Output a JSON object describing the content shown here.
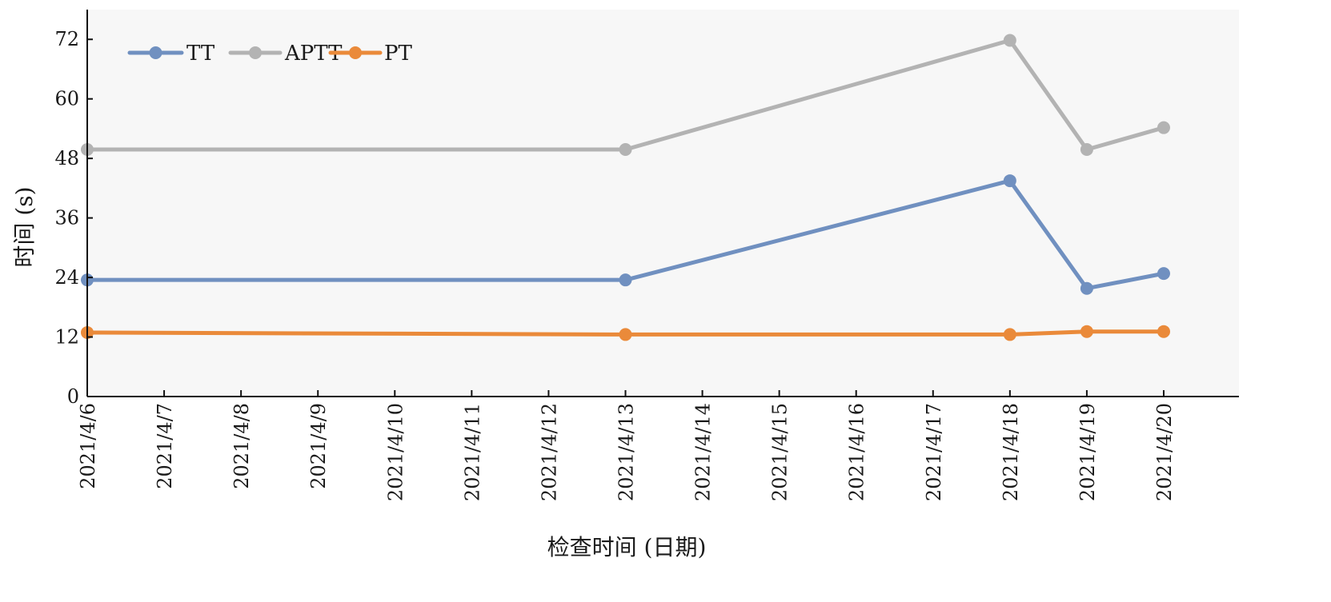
{
  "chart_data": {
    "type": "line",
    "xlabel": "检查时间 (日期)",
    "ylabel": "时间 (s)",
    "ylim": [
      0,
      78
    ],
    "yticks": [
      0,
      12,
      24,
      36,
      48,
      60,
      72
    ],
    "categories": [
      "2021/4/6",
      "2021/4/7",
      "2021/4/8",
      "2021/4/9",
      "2021/4/10",
      "2021/4/11",
      "2021/4/12",
      "2021/4/13",
      "2021/4/14",
      "2021/4/15",
      "2021/4/16",
      "2021/4/17",
      "2021/4/18",
      "2021/4/19",
      "2021/4/20"
    ],
    "series": [
      {
        "name": "TT",
        "color": "#7090c0",
        "x": [
          "2021/4/6",
          "2021/4/13",
          "2021/4/18",
          "2021/4/19",
          "2021/4/20"
        ],
        "values": [
          23.5,
          23.5,
          43.5,
          21.8,
          24.8
        ]
      },
      {
        "name": "APTT",
        "color": "#b3b3b3",
        "x": [
          "2021/4/6",
          "2021/4/13",
          "2021/4/18",
          "2021/4/19",
          "2021/4/20"
        ],
        "values": [
          49.8,
          49.8,
          71.8,
          49.8,
          54.2
        ]
      },
      {
        "name": "PT",
        "color": "#ea8a3a",
        "x": [
          "2021/4/6",
          "2021/4/13",
          "2021/4/18",
          "2021/4/19",
          "2021/4/20"
        ],
        "values": [
          12.9,
          12.5,
          12.5,
          13.1,
          13.1
        ]
      }
    ],
    "legend": "top-left",
    "grid": false
  }
}
